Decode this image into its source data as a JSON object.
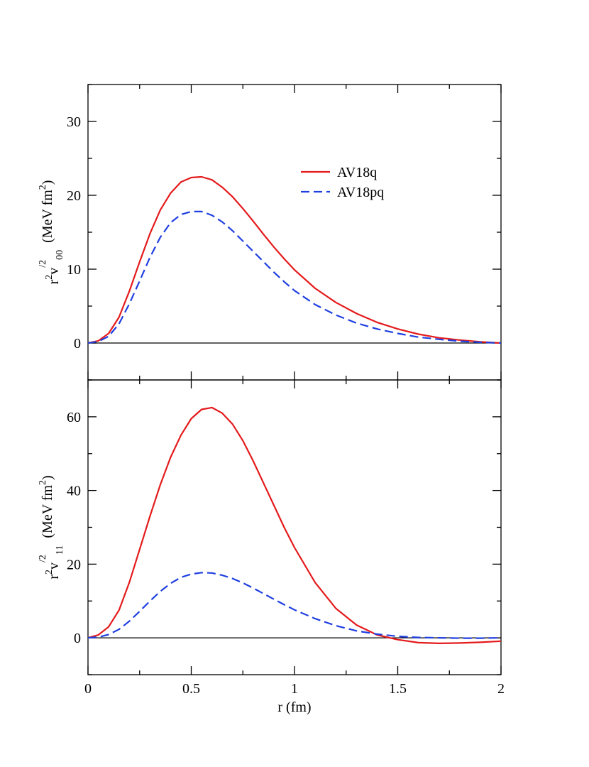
{
  "chart_data": [
    {
      "type": "line",
      "panel": "top",
      "title": "",
      "xlabel": "",
      "ylabel": {
        "base": "r",
        "exp": "2",
        "v": "v",
        "prime": "/2",
        "sub": "00",
        "unit": "(MeV fm",
        "unit_exp": "2",
        "unit_close": ")"
      },
      "xlim": [
        0,
        2
      ],
      "ylim": [
        -5,
        35
      ],
      "xticks": [
        0,
        0.5,
        1,
        1.5,
        2
      ],
      "yticks": [
        0,
        10,
        20,
        30
      ],
      "ytick_labels": [
        "0",
        "10",
        "20",
        "30"
      ],
      "zero_line": true,
      "x": [
        0,
        0.05,
        0.1,
        0.15,
        0.2,
        0.25,
        0.3,
        0.35,
        0.4,
        0.45,
        0.5,
        0.55,
        0.6,
        0.65,
        0.7,
        0.75,
        0.8,
        0.85,
        0.9,
        0.95,
        1.0,
        1.1,
        1.2,
        1.3,
        1.4,
        1.5,
        1.6,
        1.7,
        1.8,
        1.9,
        2.0
      ],
      "series": [
        {
          "name": "AV18q",
          "color": "#e41a1c",
          "dash": "solid",
          "values": [
            0,
            0.3,
            1.3,
            3.5,
            7.0,
            11.0,
            14.8,
            18.0,
            20.3,
            21.8,
            22.4,
            22.5,
            22.1,
            21.1,
            19.8,
            18.2,
            16.5,
            14.7,
            13.0,
            11.4,
            9.9,
            7.4,
            5.5,
            4.0,
            2.8,
            1.9,
            1.2,
            0.7,
            0.4,
            0.15,
            0.0
          ]
        },
        {
          "name": "AV18pq",
          "color": "#1f3fe0",
          "dash": "dashed",
          "values": [
            0,
            0.2,
            0.9,
            2.6,
            5.3,
            8.4,
            11.6,
            14.3,
            16.3,
            17.4,
            17.8,
            17.8,
            17.3,
            16.4,
            15.2,
            13.8,
            12.4,
            11.0,
            9.6,
            8.3,
            7.1,
            5.2,
            3.8,
            2.7,
            1.9,
            1.3,
            0.8,
            0.5,
            0.25,
            0.1,
            0.0
          ]
        }
      ],
      "legend": {
        "location": "top-right",
        "entries": [
          "AV18q",
          "AV18pq"
        ]
      }
    },
    {
      "type": "line",
      "panel": "bottom",
      "title": "",
      "xlabel": "r (fm)",
      "ylabel": {
        "base": "r",
        "exp": "2",
        "v": "v",
        "prime": "/2",
        "sub": "11",
        "unit": "(MeV fm",
        "unit_exp": "2",
        "unit_close": ")"
      },
      "xlim": [
        0,
        2
      ],
      "ylim": [
        -10,
        70
      ],
      "xticks": [
        0,
        0.5,
        1,
        1.5,
        2
      ],
      "xtick_labels": [
        "0",
        "0.5",
        "1",
        "1.5",
        "2"
      ],
      "yticks": [
        0,
        20,
        40,
        60
      ],
      "ytick_labels": [
        "0",
        "20",
        "40",
        "60"
      ],
      "zero_line": true,
      "x": [
        0,
        0.05,
        0.1,
        0.15,
        0.2,
        0.25,
        0.3,
        0.35,
        0.4,
        0.45,
        0.5,
        0.55,
        0.6,
        0.65,
        0.7,
        0.75,
        0.8,
        0.85,
        0.9,
        0.95,
        1.0,
        1.1,
        1.2,
        1.3,
        1.4,
        1.5,
        1.6,
        1.7,
        1.8,
        1.9,
        2.0
      ],
      "series": [
        {
          "name": "AV18q",
          "color": "#e41a1c",
          "dash": "solid",
          "values": [
            0,
            0.8,
            3.0,
            7.5,
            15.0,
            24.0,
            33.0,
            41.5,
            49.0,
            55.0,
            59.5,
            62.0,
            62.5,
            61.0,
            58.0,
            53.5,
            48.0,
            42.0,
            36.0,
            30.0,
            24.5,
            15.0,
            8.0,
            3.5,
            0.8,
            -0.5,
            -1.3,
            -1.5,
            -1.4,
            -1.2,
            -0.9
          ]
        },
        {
          "name": "AV18pq",
          "color": "#1f3fe0",
          "dash": "dashed",
          "values": [
            0,
            0.2,
            0.9,
            2.3,
            4.5,
            7.2,
            10.0,
            12.6,
            14.8,
            16.4,
            17.3,
            17.7,
            17.6,
            17.0,
            16.1,
            14.9,
            13.5,
            12.0,
            10.5,
            9.0,
            7.6,
            5.2,
            3.3,
            1.9,
            1.0,
            0.4,
            0.1,
            0.0,
            -0.1,
            -0.1,
            0.0
          ]
        }
      ]
    }
  ]
}
